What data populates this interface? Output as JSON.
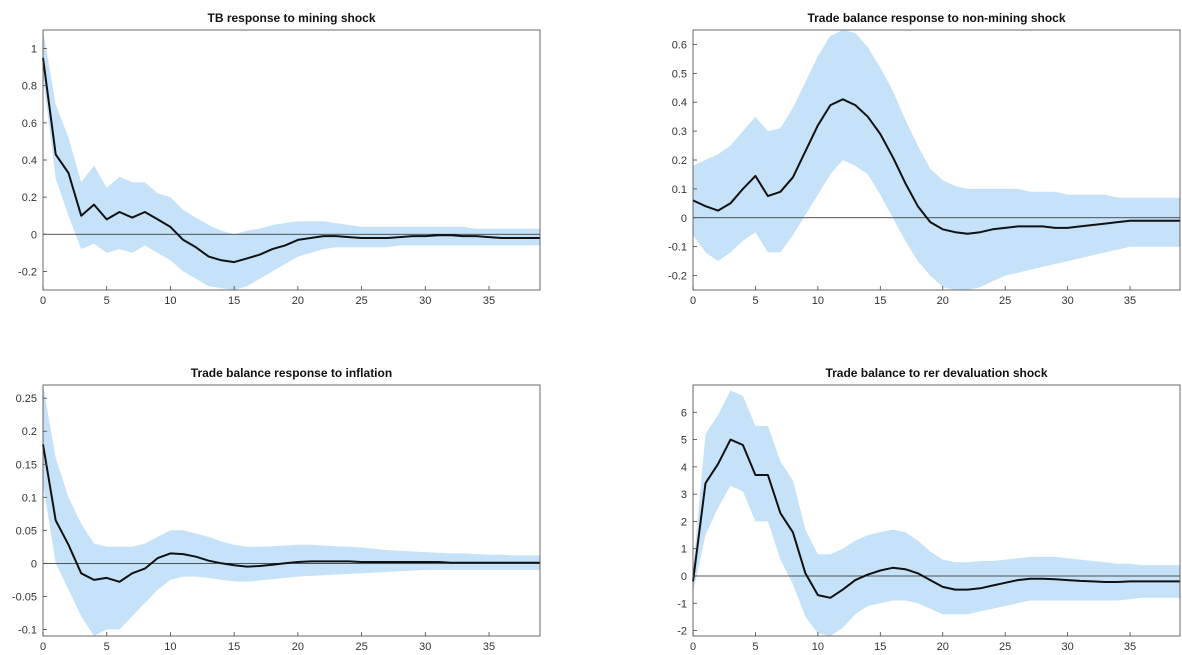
{
  "colors": {
    "band": "#c6e2f8",
    "line": "#111111",
    "zero_line": "#222222"
  },
  "chart_data": [
    {
      "type": "line",
      "title": "TB response to mining shock",
      "xlim": [
        0,
        39
      ],
      "ylim": [
        -0.3,
        1.1
      ],
      "xticks": [
        0,
        5,
        10,
        15,
        20,
        25,
        30,
        35
      ],
      "yticks": [
        -0.2,
        0,
        0.2,
        0.4,
        0.6,
        0.8,
        1
      ],
      "ytick_labels": [
        "-0.2",
        "0",
        "0.2",
        "0.4",
        "0.6",
        "0.8",
        "1"
      ],
      "x": [
        0,
        1,
        2,
        3,
        4,
        5,
        6,
        7,
        8,
        9,
        10,
        11,
        12,
        13,
        14,
        15,
        16,
        17,
        18,
        19,
        20,
        21,
        22,
        23,
        24,
        25,
        26,
        27,
        28,
        29,
        30,
        31,
        32,
        33,
        34,
        35,
        36,
        37,
        38,
        39
      ],
      "series": [
        {
          "values": [
            0.95,
            0.43,
            0.33,
            0.1,
            0.16,
            0.08,
            0.12,
            0.09,
            0.12,
            0.08,
            0.04,
            -0.03,
            -0.07,
            -0.12,
            -0.14,
            -0.15,
            -0.13,
            -0.11,
            -0.08,
            -0.06,
            -0.03,
            -0.02,
            -0.01,
            -0.01,
            -0.015,
            -0.02,
            -0.02,
            -0.02,
            -0.015,
            -0.01,
            -0.01,
            -0.005,
            -0.005,
            -0.01,
            -0.01,
            -0.015,
            -0.02,
            -0.02,
            -0.02,
            -0.02
          ],
          "lower": [
            0.85,
            0.3,
            0.1,
            -0.08,
            -0.05,
            -0.1,
            -0.08,
            -0.1,
            -0.06,
            -0.1,
            -0.14,
            -0.2,
            -0.24,
            -0.28,
            -0.29,
            -0.3,
            -0.28,
            -0.24,
            -0.2,
            -0.16,
            -0.12,
            -0.1,
            -0.08,
            -0.07,
            -0.07,
            -0.07,
            -0.07,
            -0.07,
            -0.06,
            -0.06,
            -0.06,
            -0.06,
            -0.06,
            -0.06,
            -0.06,
            -0.06,
            -0.06,
            -0.06,
            -0.06,
            -0.06
          ],
          "upper": [
            1.1,
            0.7,
            0.52,
            0.28,
            0.37,
            0.25,
            0.31,
            0.28,
            0.28,
            0.22,
            0.2,
            0.13,
            0.09,
            0.05,
            0.02,
            0.0,
            0.02,
            0.03,
            0.05,
            0.06,
            0.07,
            0.07,
            0.07,
            0.06,
            0.05,
            0.04,
            0.04,
            0.04,
            0.04,
            0.04,
            0.04,
            0.04,
            0.04,
            0.04,
            0.03,
            0.03,
            0.03,
            0.03,
            0.03,
            0.03
          ]
        }
      ]
    },
    {
      "type": "line",
      "title": "Trade balance response to non-mining shock",
      "xlim": [
        0,
        39
      ],
      "ylim": [
        -0.25,
        0.65
      ],
      "xticks": [
        0,
        5,
        10,
        15,
        20,
        25,
        30,
        35
      ],
      "yticks": [
        -0.2,
        -0.1,
        0,
        0.1,
        0.2,
        0.3,
        0.4,
        0.5,
        0.6
      ],
      "ytick_labels": [
        "-0.2",
        "-0.1",
        "0",
        "0.1",
        "0.2",
        "0.3",
        "0.4",
        "0.5",
        "0.6"
      ],
      "x": [
        0,
        1,
        2,
        3,
        4,
        5,
        6,
        7,
        8,
        9,
        10,
        11,
        12,
        13,
        14,
        15,
        16,
        17,
        18,
        19,
        20,
        21,
        22,
        23,
        24,
        25,
        26,
        27,
        28,
        29,
        30,
        31,
        32,
        33,
        34,
        35,
        36,
        37,
        38,
        39
      ],
      "series": [
        {
          "values": [
            0.06,
            0.04,
            0.025,
            0.05,
            0.1,
            0.145,
            0.075,
            0.09,
            0.14,
            0.23,
            0.32,
            0.39,
            0.41,
            0.39,
            0.35,
            0.29,
            0.21,
            0.12,
            0.04,
            -0.015,
            -0.04,
            -0.05,
            -0.055,
            -0.05,
            -0.04,
            -0.035,
            -0.03,
            -0.03,
            -0.03,
            -0.035,
            -0.035,
            -0.03,
            -0.025,
            -0.02,
            -0.015,
            -0.01,
            -0.01,
            -0.01,
            -0.01,
            -0.01
          ],
          "lower": [
            -0.06,
            -0.12,
            -0.15,
            -0.12,
            -0.08,
            -0.05,
            -0.12,
            -0.12,
            -0.06,
            0.01,
            0.08,
            0.15,
            0.2,
            0.18,
            0.15,
            0.08,
            0.0,
            -0.08,
            -0.15,
            -0.2,
            -0.24,
            -0.25,
            -0.25,
            -0.24,
            -0.22,
            -0.2,
            -0.19,
            -0.18,
            -0.17,
            -0.16,
            -0.15,
            -0.14,
            -0.13,
            -0.12,
            -0.11,
            -0.1,
            -0.1,
            -0.1,
            -0.1,
            -0.1
          ],
          "upper": [
            0.18,
            0.2,
            0.22,
            0.25,
            0.3,
            0.35,
            0.3,
            0.31,
            0.38,
            0.47,
            0.56,
            0.63,
            0.66,
            0.64,
            0.59,
            0.52,
            0.44,
            0.34,
            0.25,
            0.17,
            0.13,
            0.11,
            0.1,
            0.1,
            0.1,
            0.1,
            0.1,
            0.09,
            0.09,
            0.09,
            0.08,
            0.08,
            0.08,
            0.08,
            0.07,
            0.07,
            0.07,
            0.07,
            0.07,
            0.07
          ]
        }
      ]
    },
    {
      "type": "line",
      "title": "Trade balance response to inflation",
      "xlim": [
        0,
        39
      ],
      "ylim": [
        -0.11,
        0.27
      ],
      "xticks": [
        0,
        5,
        10,
        15,
        20,
        25,
        30,
        35
      ],
      "yticks": [
        -0.1,
        -0.05,
        0,
        0.05,
        0.1,
        0.15,
        0.2,
        0.25
      ],
      "ytick_labels": [
        "-0.1",
        "-0.05",
        "0",
        "0.05",
        "0.1",
        "0.15",
        "0.2",
        "0.25"
      ],
      "x": [
        0,
        1,
        2,
        3,
        4,
        5,
        6,
        7,
        8,
        9,
        10,
        11,
        12,
        13,
        14,
        15,
        16,
        17,
        18,
        19,
        20,
        21,
        22,
        23,
        24,
        25,
        26,
        27,
        28,
        29,
        30,
        31,
        32,
        33,
        34,
        35,
        36,
        37,
        38,
        39
      ],
      "series": [
        {
          "values": [
            0.18,
            0.065,
            0.028,
            -0.015,
            -0.025,
            -0.022,
            -0.028,
            -0.015,
            -0.008,
            0.008,
            0.015,
            0.014,
            0.01,
            0.004,
            0.0,
            -0.003,
            -0.005,
            -0.004,
            -0.002,
            0.0,
            0.002,
            0.003,
            0.003,
            0.003,
            0.003,
            0.002,
            0.002,
            0.002,
            0.002,
            0.002,
            0.002,
            0.002,
            0.001,
            0.001,
            0.001,
            0.001,
            0.001,
            0.001,
            0.001,
            0.001
          ],
          "lower": [
            0.12,
            0.0,
            -0.04,
            -0.08,
            -0.11,
            -0.1,
            -0.1,
            -0.08,
            -0.06,
            -0.04,
            -0.025,
            -0.02,
            -0.02,
            -0.022,
            -0.025,
            -0.027,
            -0.028,
            -0.026,
            -0.024,
            -0.022,
            -0.02,
            -0.019,
            -0.018,
            -0.017,
            -0.016,
            -0.015,
            -0.014,
            -0.013,
            -0.012,
            -0.011,
            -0.01,
            -0.01,
            -0.01,
            -0.01,
            -0.01,
            -0.01,
            -0.01,
            -0.01,
            -0.01,
            -0.01
          ],
          "upper": [
            0.27,
            0.16,
            0.1,
            0.06,
            0.03,
            0.025,
            0.025,
            0.025,
            0.03,
            0.04,
            0.05,
            0.05,
            0.045,
            0.04,
            0.033,
            0.028,
            0.025,
            0.025,
            0.026,
            0.027,
            0.028,
            0.028,
            0.027,
            0.026,
            0.025,
            0.024,
            0.022,
            0.02,
            0.019,
            0.018,
            0.017,
            0.016,
            0.015,
            0.015,
            0.014,
            0.013,
            0.013,
            0.012,
            0.012,
            0.012
          ]
        }
      ]
    },
    {
      "type": "line",
      "title": "Trade balance to rer devaluation shock",
      "xlim": [
        0,
        39
      ],
      "ylim": [
        -2.2,
        7
      ],
      "xticks": [
        0,
        5,
        10,
        15,
        20,
        25,
        30,
        35
      ],
      "yticks": [
        -2,
        -1,
        0,
        1,
        2,
        3,
        4,
        5,
        6
      ],
      "ytick_labels": [
        "-2",
        "-1",
        "0",
        "1",
        "2",
        "3",
        "4",
        "5",
        "6"
      ],
      "x": [
        0,
        1,
        2,
        3,
        4,
        5,
        6,
        7,
        8,
        9,
        10,
        11,
        12,
        13,
        14,
        15,
        16,
        17,
        18,
        19,
        20,
        21,
        22,
        23,
        24,
        25,
        26,
        27,
        28,
        29,
        30,
        31,
        32,
        33,
        34,
        35,
        36,
        37,
        38,
        39
      ],
      "series": [
        {
          "values": [
            -0.2,
            3.4,
            4.1,
            5.0,
            4.8,
            3.7,
            3.7,
            2.3,
            1.6,
            0.1,
            -0.7,
            -0.8,
            -0.5,
            -0.15,
            0.05,
            0.2,
            0.3,
            0.25,
            0.1,
            -0.15,
            -0.4,
            -0.5,
            -0.5,
            -0.45,
            -0.35,
            -0.25,
            -0.15,
            -0.1,
            -0.1,
            -0.12,
            -0.15,
            -0.18,
            -0.2,
            -0.22,
            -0.22,
            -0.2,
            -0.2,
            -0.2,
            -0.2,
            -0.2
          ],
          "lower": [
            -0.6,
            1.5,
            2.5,
            3.3,
            3.1,
            2.0,
            2.0,
            0.6,
            -0.3,
            -1.5,
            -2.1,
            -2.3,
            -1.9,
            -1.4,
            -1.1,
            -1.0,
            -0.9,
            -0.9,
            -1.0,
            -1.2,
            -1.4,
            -1.4,
            -1.4,
            -1.3,
            -1.2,
            -1.1,
            -1.0,
            -0.9,
            -0.9,
            -0.9,
            -0.9,
            -0.9,
            -0.9,
            -0.9,
            -0.9,
            -0.85,
            -0.8,
            -0.8,
            -0.8,
            -0.8
          ],
          "upper": [
            0.2,
            5.2,
            5.9,
            6.8,
            6.6,
            5.5,
            5.5,
            4.2,
            3.5,
            1.7,
            0.8,
            0.8,
            1.0,
            1.3,
            1.5,
            1.6,
            1.7,
            1.6,
            1.3,
            0.9,
            0.6,
            0.5,
            0.5,
            0.55,
            0.55,
            0.6,
            0.65,
            0.7,
            0.7,
            0.7,
            0.65,
            0.6,
            0.55,
            0.5,
            0.45,
            0.45,
            0.4,
            0.4,
            0.4,
            0.4
          ]
        }
      ]
    }
  ]
}
